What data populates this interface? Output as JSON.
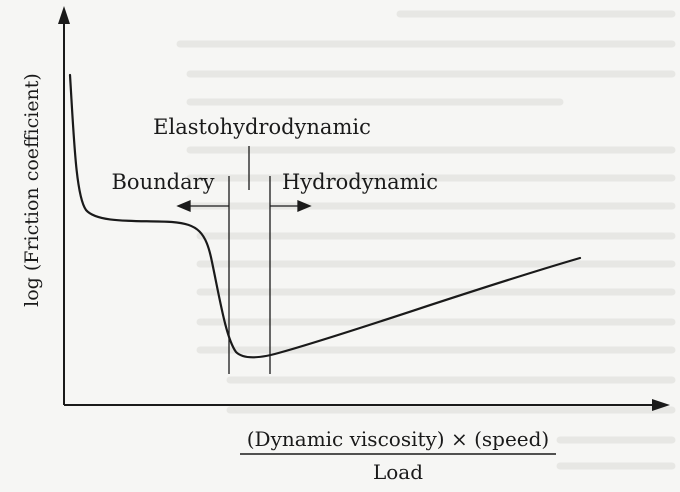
{
  "diagram": {
    "y_axis_label": "log (Friction coefficient)",
    "x_axis_numerator": "(Dynamic viscosity) × (speed)",
    "x_axis_denominator": "Load",
    "regions": {
      "boundary": "Boundary",
      "elastohydrodynamic": "Elastohydrodynamic",
      "hydrodynamic": "Hydrodynamic"
    }
  },
  "colors": {
    "ink": "#1a1a1a",
    "paper": "#f6f6f4",
    "bleed_through": "#dcdcd8"
  }
}
